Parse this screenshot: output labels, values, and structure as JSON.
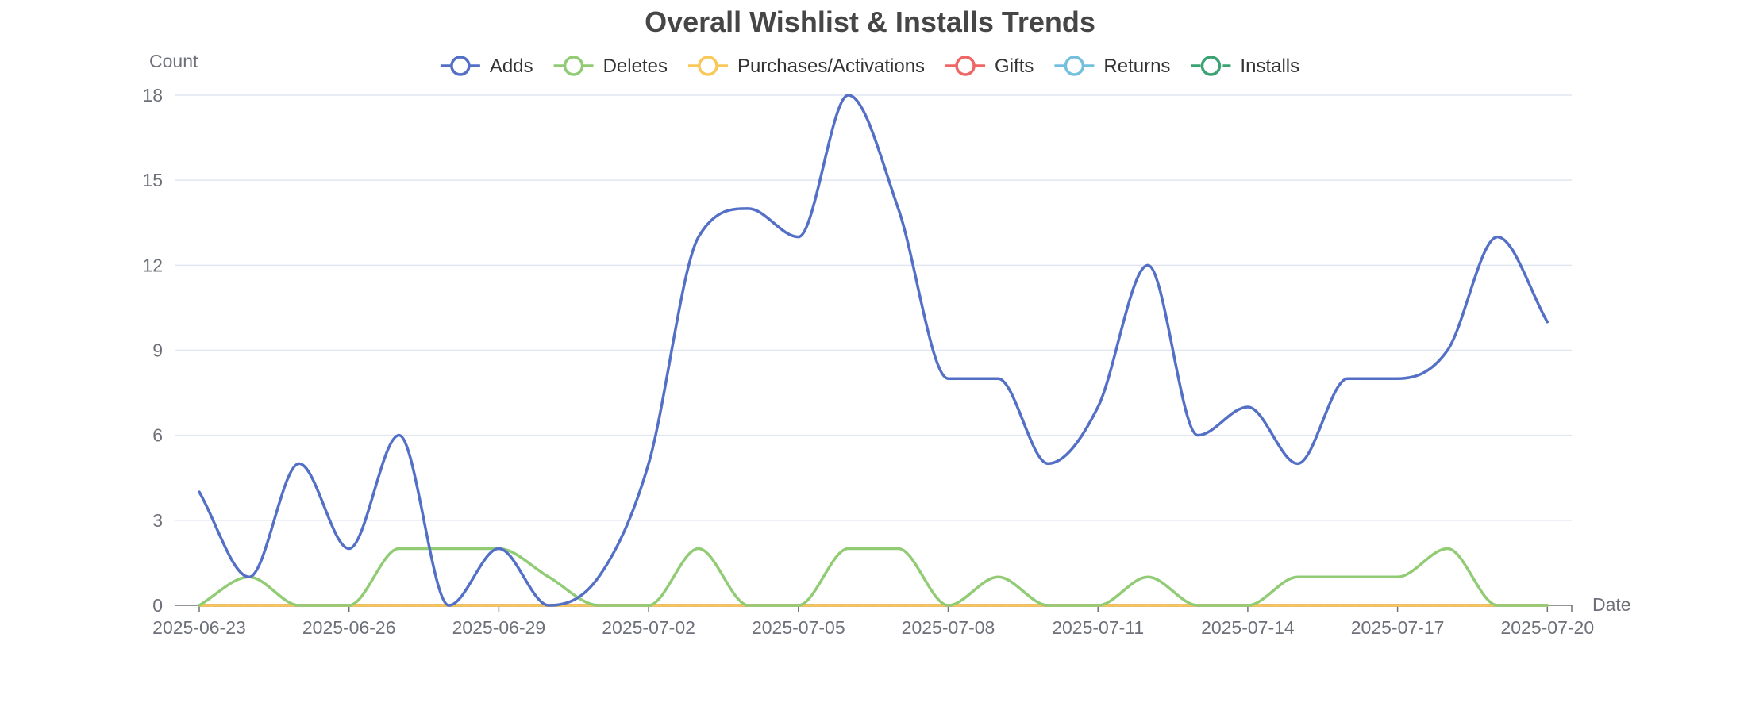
{
  "chart_data": {
    "type": "line",
    "title": "Overall Wishlist & Installs Trends",
    "xlabel": "Date",
    "ylabel": "Count",
    "ylim": [
      0,
      18
    ],
    "y_ticks": [
      "0",
      "3",
      "6",
      "9",
      "12",
      "15",
      "18"
    ],
    "x_tick_labels": [
      "2025-06-23",
      "2025-06-26",
      "2025-06-29",
      "2025-07-02",
      "2025-07-05",
      "2025-07-08",
      "2025-07-11",
      "2025-07-14",
      "2025-07-17",
      "2025-07-20"
    ],
    "grid": true,
    "legend_position": "top",
    "smooth": true,
    "x": [
      "2025-06-23",
      "2025-06-24",
      "2025-06-25",
      "2025-06-26",
      "2025-06-27",
      "2025-06-28",
      "2025-06-29",
      "2025-06-30",
      "2025-07-01",
      "2025-07-02",
      "2025-07-03",
      "2025-07-04",
      "2025-07-05",
      "2025-07-06",
      "2025-07-07",
      "2025-07-08",
      "2025-07-09",
      "2025-07-10",
      "2025-07-11",
      "2025-07-12",
      "2025-07-13",
      "2025-07-14",
      "2025-07-15",
      "2025-07-16",
      "2025-07-17",
      "2025-07-18",
      "2025-07-19",
      "2025-07-20"
    ],
    "series": [
      {
        "name": "Adds",
        "color": "#5470c6",
        "dashed": false,
        "values": [
          4,
          1,
          5,
          2,
          6,
          0,
          2,
          0,
          1,
          5,
          13,
          14,
          13,
          18,
          14,
          8,
          8,
          5,
          7,
          12,
          6,
          7,
          5,
          8,
          8,
          9,
          13,
          10
        ]
      },
      {
        "name": "Deletes",
        "color": "#91cc75",
        "dashed": false,
        "values": [
          0,
          1,
          0,
          0,
          2,
          2,
          2,
          1,
          0,
          0,
          2,
          0,
          0,
          2,
          2,
          0,
          1,
          0,
          0,
          1,
          0,
          0,
          1,
          1,
          1,
          2,
          0,
          0
        ]
      },
      {
        "name": "Purchases/Activations",
        "color": "#fac858",
        "dashed": false,
        "values": [
          0,
          0,
          0,
          0,
          0,
          0,
          0,
          0,
          0,
          0,
          0,
          0,
          0,
          0,
          0,
          0,
          0,
          0,
          0,
          0,
          0,
          0,
          0,
          0,
          0,
          0,
          0,
          0
        ]
      },
      {
        "name": "Gifts",
        "color": "#ee6666",
        "dashed": false,
        "values": [
          0,
          0,
          0,
          0,
          0,
          0,
          0,
          0,
          0,
          0,
          0,
          0,
          0,
          0,
          0,
          0,
          0,
          0,
          0,
          0,
          0,
          0,
          0,
          0,
          0,
          0,
          0,
          0
        ]
      },
      {
        "name": "Returns",
        "color": "#73c0de",
        "dashed": false,
        "values": [
          0,
          0,
          0,
          0,
          0,
          0,
          0,
          0,
          0,
          0,
          0,
          0,
          0,
          0,
          0,
          0,
          0,
          0,
          0,
          0,
          0,
          0,
          0,
          0,
          0,
          0,
          0,
          0
        ]
      },
      {
        "name": "Installs",
        "color": "#3ba272",
        "dashed": true,
        "values": [
          0,
          0,
          0,
          0,
          0,
          0,
          0,
          0,
          0,
          0,
          0,
          0,
          0,
          0,
          0,
          0,
          0,
          0,
          0,
          0,
          0,
          0,
          0,
          0,
          0,
          0,
          0,
          0
        ]
      }
    ]
  }
}
